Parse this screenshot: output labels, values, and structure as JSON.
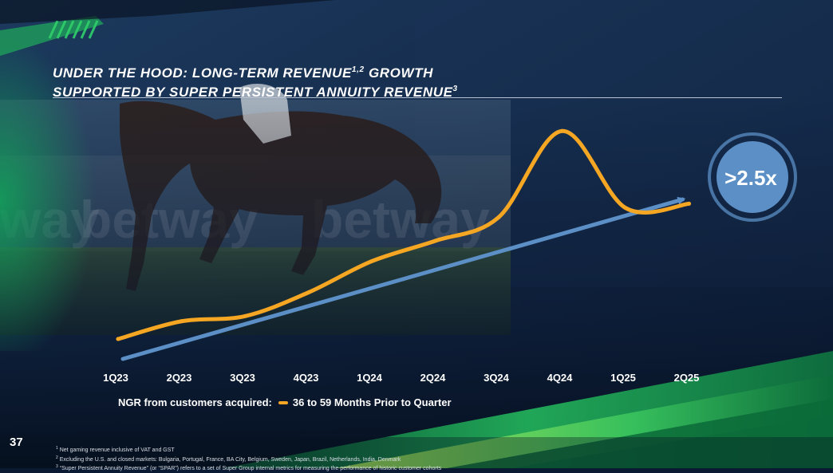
{
  "slide": {
    "title_line1": "UNDER THE HOOD: LONG-TERM REVENUE",
    "title_line1_sup": "1,2",
    "title_line1_end": " GROWTH",
    "title_line2": "SUPPORTED BY SUPER PERSISTENT ANNUITY REVENUE",
    "title_line2_sup": "3",
    "page_number": "37",
    "footnotes": [
      {
        "marker": "1",
        "text": "Net gaming revenue inclusive of VAT and GST"
      },
      {
        "marker": "2",
        "text": "Excluding the U.S. and closed markets: Bulgaria, Portugal, France, BA City, Belgium, Sweden, Japan, Brazil, Netherlands, India, Denmark"
      },
      {
        "marker": "3",
        "text": "“Super Persistent Annuity Revenue” (or “SPAR”) refers to a set of Super Group internal metrics for measuring the performance of historic customer cohorts"
      }
    ],
    "background_text": "betway",
    "colors": {
      "line": "#f5a623",
      "trend": "#5b8fc6",
      "badge": "#5b8fc6",
      "accent_green": "#1db954"
    }
  },
  "chart_data": {
    "type": "line",
    "categories": [
      "1Q23",
      "2Q23",
      "3Q23",
      "4Q23",
      "1Q24",
      "2Q24",
      "3Q24",
      "4Q24",
      "1Q25",
      "2Q25"
    ],
    "series": [
      {
        "name": "36 to 59 Months Prior to Quarter",
        "values": [
          1.0,
          1.21,
          1.27,
          1.55,
          1.92,
          2.16,
          2.44,
          3.46,
          2.55,
          2.6
        ]
      }
    ],
    "y_axis_visible": false,
    "grid": false,
    "legend": {
      "prefix": "NGR from customers acquired:",
      "placement": "bottom-left"
    },
    "trend_arrow": {
      "label": ">2.5x"
    }
  }
}
